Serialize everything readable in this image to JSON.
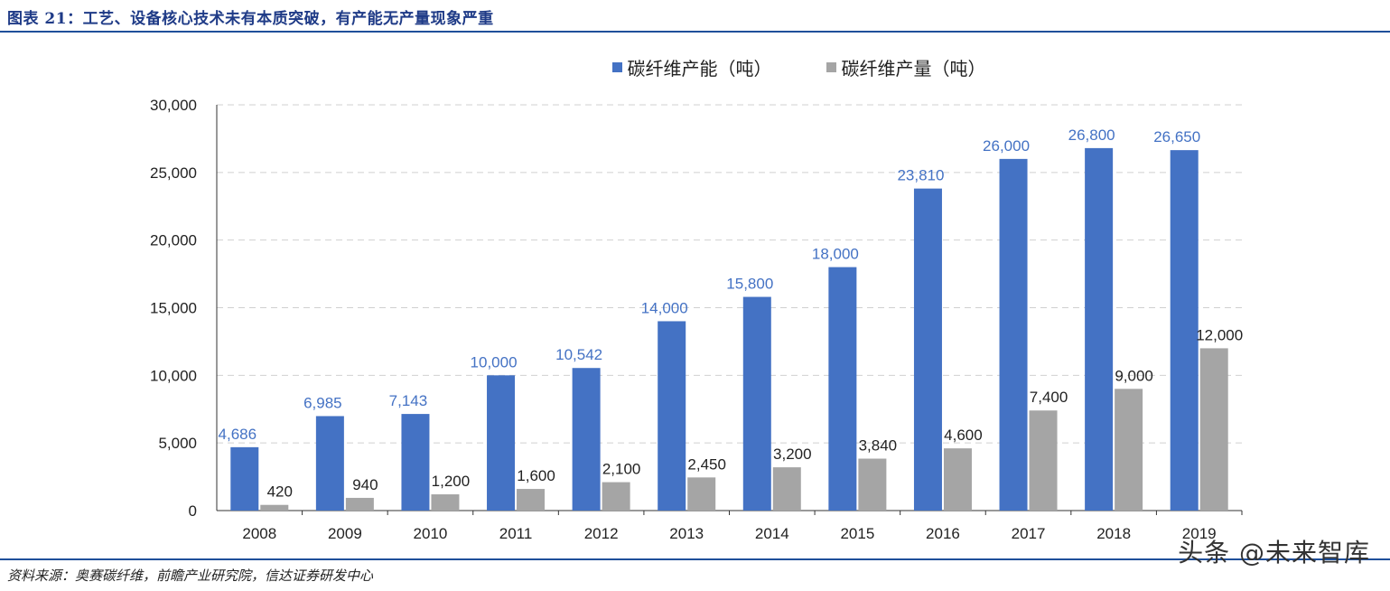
{
  "header": {
    "title": "图表 21：工艺、设备核心技术未有本质突破，有产能无产量现象严重"
  },
  "footer": {
    "source": "资料来源：奥赛碳纤维，前瞻产业研究院，信达证券研发中心",
    "watermark": "头条 @未来智库"
  },
  "legend": {
    "capacity": "碳纤维产能（吨）",
    "output": "碳纤维产量（吨）"
  },
  "colors": {
    "capacity": "#4472c4",
    "output": "#a5a5a5",
    "capacity_label": "#4472c4",
    "output_label": "#222222"
  },
  "chart_data": {
    "type": "bar",
    "categories": [
      "2008",
      "2009",
      "2010",
      "2011",
      "2012",
      "2013",
      "2014",
      "2015",
      "2016",
      "2017",
      "2018",
      "2019"
    ],
    "series": [
      {
        "name": "碳纤维产能（吨）",
        "values": [
          4686,
          6985,
          7143,
          10000,
          10542,
          14000,
          15800,
          18000,
          23810,
          26000,
          26800,
          26650
        ],
        "labels": [
          "4,686",
          "6,985",
          "7,143",
          "10,000",
          "10,542",
          "14,000",
          "15,800",
          "18,000",
          "23,810",
          "26,000",
          "26,800",
          "26,650"
        ]
      },
      {
        "name": "碳纤维产量（吨）",
        "values": [
          420,
          940,
          1200,
          1600,
          2100,
          2450,
          3200,
          3840,
          4600,
          7400,
          9000,
          12000
        ],
        "labels": [
          "420",
          "940",
          "1,200",
          "1,600",
          "2,100",
          "2,450",
          "3,200",
          "3,840",
          "4,600",
          "7,400",
          "9,000",
          "12,000"
        ]
      }
    ],
    "ylim": [
      0,
      30000
    ],
    "yticks": [
      0,
      5000,
      10000,
      15000,
      20000,
      25000,
      30000
    ],
    "ytick_labels": [
      "0",
      "5,000",
      "10,000",
      "15,000",
      "20,000",
      "25,000",
      "30,000"
    ],
    "grid": true,
    "legend_position": "top"
  }
}
